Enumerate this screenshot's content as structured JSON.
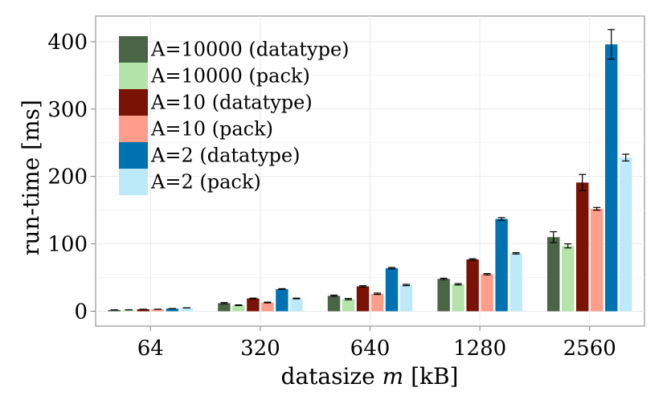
{
  "chart_data": {
    "type": "bar",
    "xlabel": "datasize m [kB]",
    "ylabel": "run-time [ms]",
    "categories": [
      "64",
      "320",
      "640",
      "1280",
      "2560"
    ],
    "yticks": [
      0,
      100,
      200,
      300,
      400
    ],
    "ylim": [
      -22,
      438
    ],
    "grid": true,
    "legend_position": "top-left",
    "series": [
      {
        "name": "A=10000 (datatype)",
        "color": "#4a6446",
        "values": [
          2,
          12,
          23,
          48,
          110
        ],
        "err": [
          0,
          1,
          1,
          1,
          8
        ]
      },
      {
        "name": "A=10000 (pack)",
        "color": "#b4e4aa",
        "values": [
          2,
          9,
          18,
          40,
          97
        ],
        "err": [
          0,
          0.5,
          1,
          1,
          3
        ]
      },
      {
        "name": "A=10 (datatype)",
        "color": "#7a1205",
        "values": [
          3,
          19,
          37,
          77,
          191
        ],
        "err": [
          0,
          0.5,
          1,
          1,
          12
        ]
      },
      {
        "name": "A=10 (pack)",
        "color": "#ff9c8a",
        "values": [
          3,
          13,
          26,
          55,
          152
        ],
        "err": [
          0,
          0.5,
          1,
          1,
          2
        ]
      },
      {
        "name": "A=2 (datatype)",
        "color": "#0072b2",
        "values": [
          4,
          33,
          64,
          137,
          396
        ],
        "err": [
          0,
          0.5,
          1,
          2,
          22
        ]
      },
      {
        "name": "A=2 (pack)",
        "color": "#bdeaf9",
        "values": [
          5,
          19,
          39,
          86,
          228
        ],
        "err": [
          0,
          0.5,
          1,
          1,
          5
        ]
      }
    ]
  }
}
